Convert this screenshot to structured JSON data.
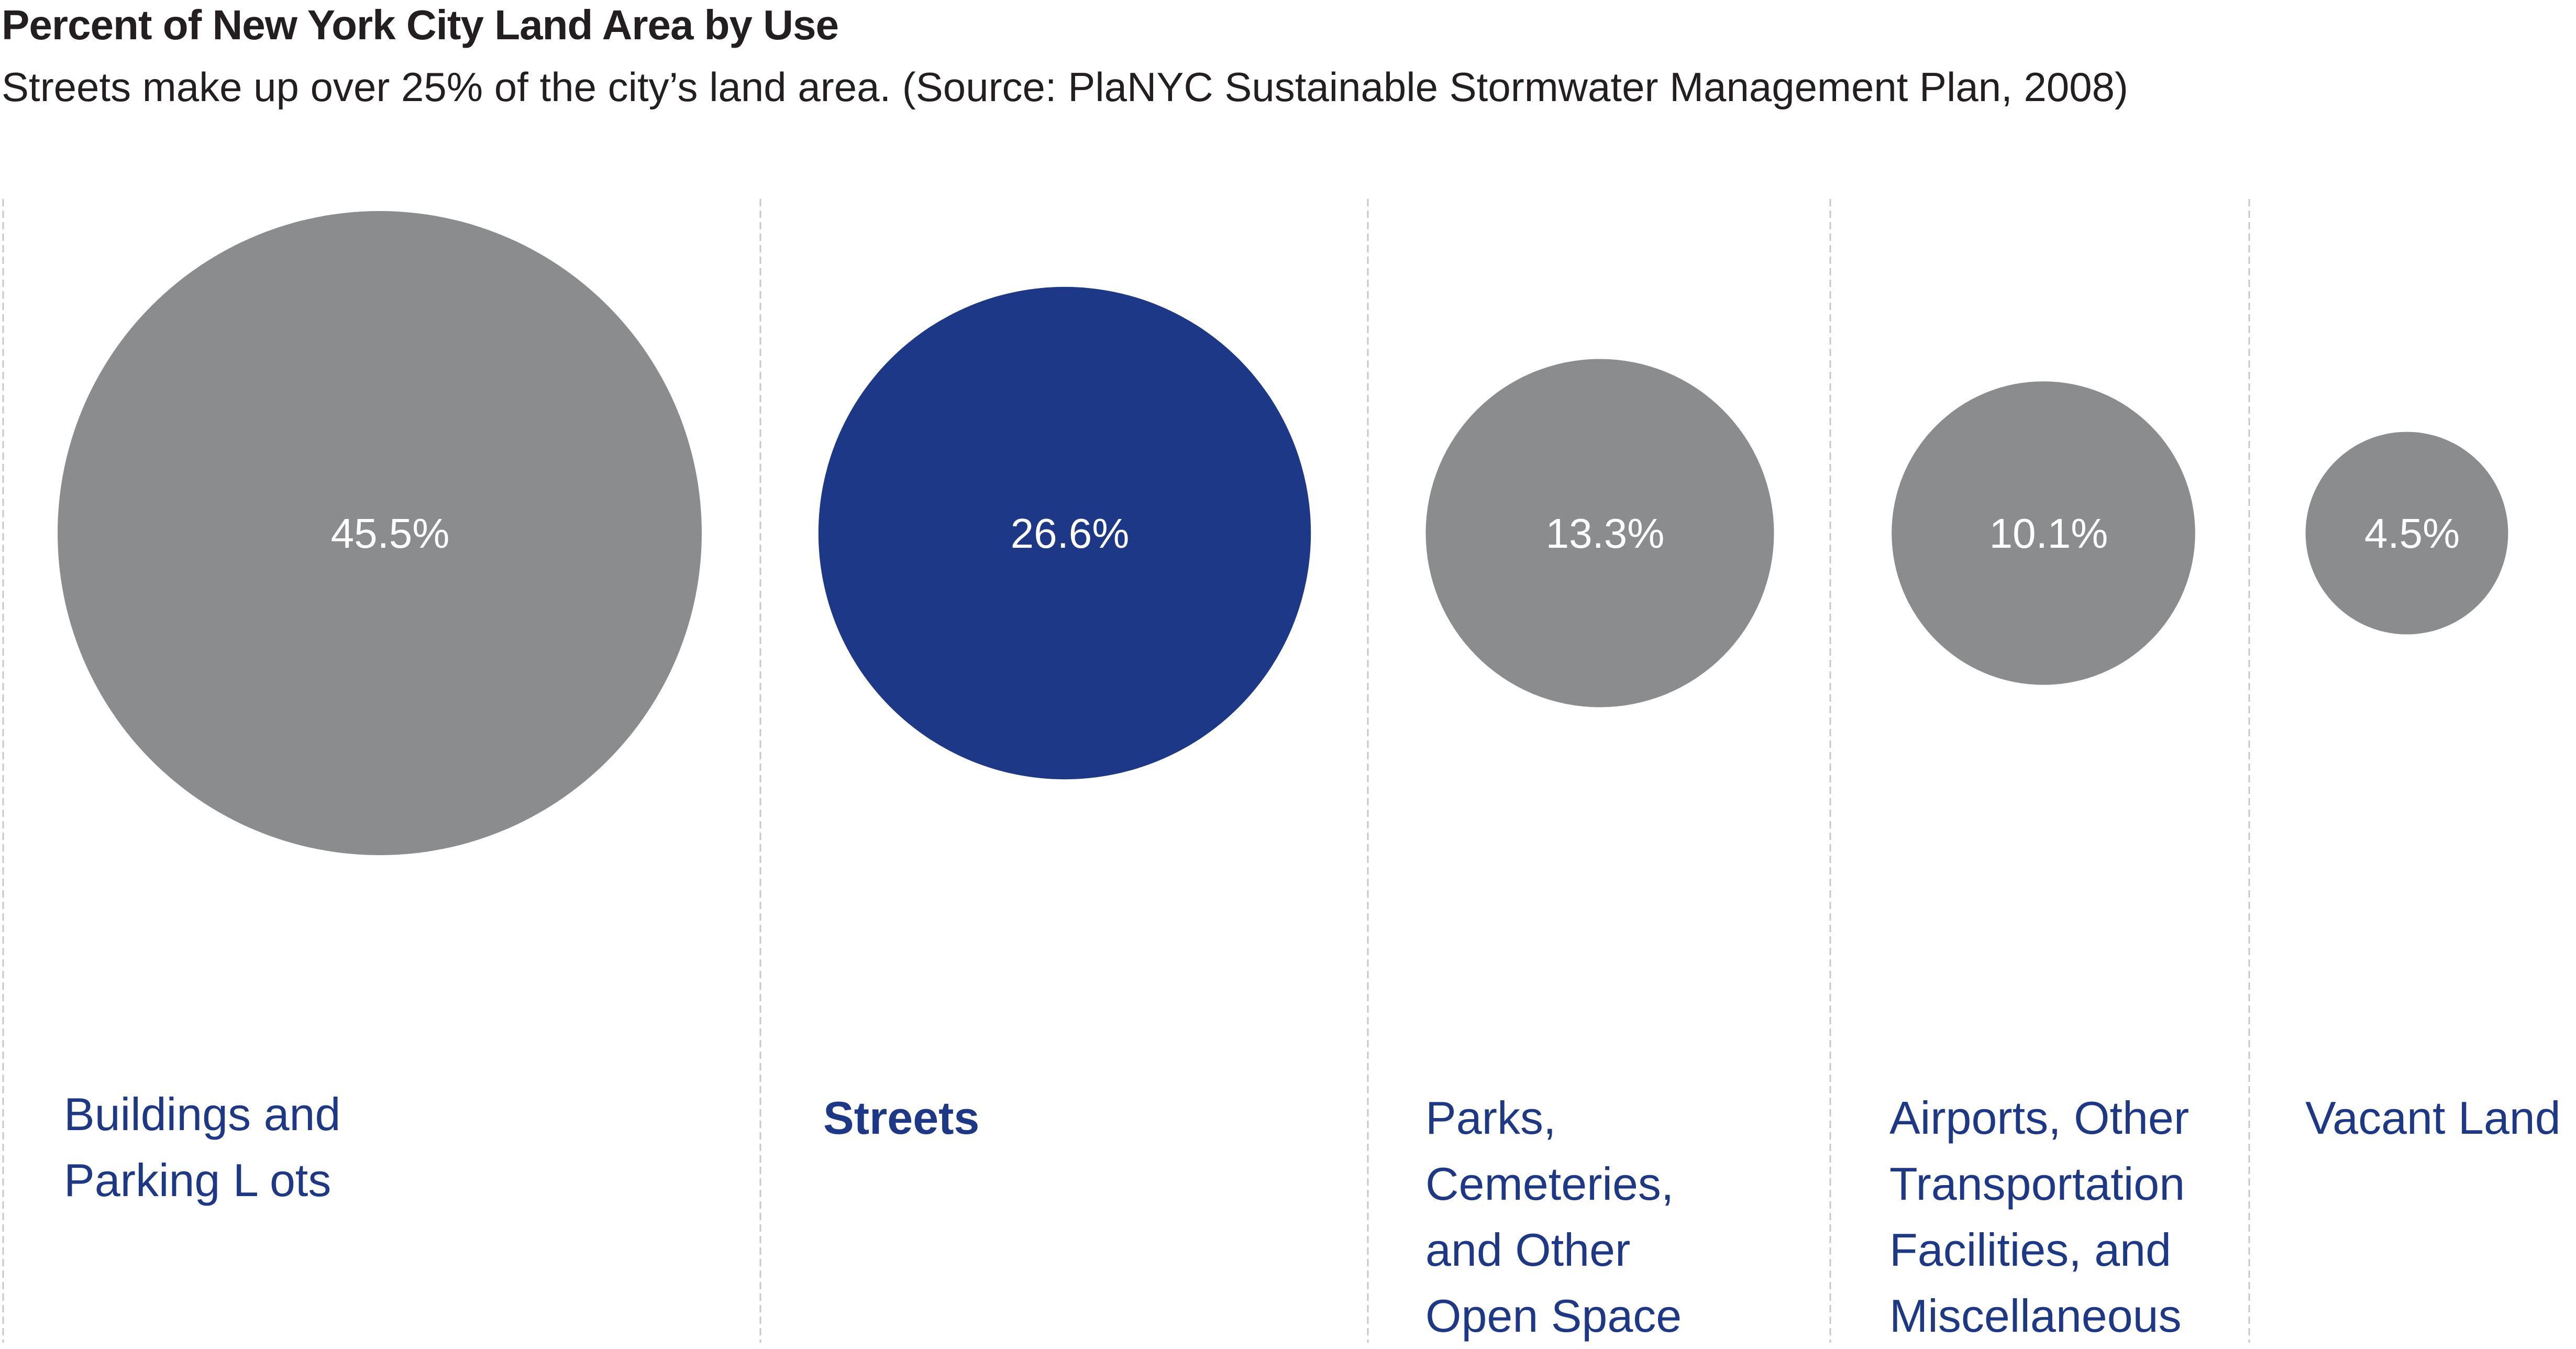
{
  "chart_data": {
    "type": "bubble",
    "title": "Percent of New York City Land Area by Use",
    "subtitle": "Streets make up over 25% of the city’s land area. (Source: PlaNYC Sustainable Stormwater Management Plan, 2008)",
    "unit": "%",
    "categories": [
      {
        "label_lines": [
          "Buildings and",
          "Parking L ots"
        ],
        "value": 45.5,
        "display": "45.5%",
        "color": "#8b8c8e",
        "highlight": false
      },
      {
        "label_lines": [
          "Streets"
        ],
        "value": 26.6,
        "display": "26.6%",
        "color": "#1e3888",
        "highlight": true
      },
      {
        "label_lines": [
          "Parks,",
          "Cemeteries,",
          "and Other",
          "Open Space"
        ],
        "value": 13.3,
        "display": "13.3%",
        "color": "#8b8c8e",
        "highlight": false
      },
      {
        "label_lines": [
          "Airports, Other",
          "Transportation",
          "Facilities, and",
          "Miscellaneous"
        ],
        "value": 10.1,
        "display": "10.1%",
        "color": "#8b8c8e",
        "highlight": false
      },
      {
        "label_lines": [
          "Vacant Land"
        ],
        "value": 4.5,
        "display": "4.5%",
        "color": "#8b8c8e",
        "highlight": false
      }
    ],
    "colors": {
      "highlight": "#1e3888",
      "default": "#8b8c8e",
      "label_text": "#1e3888",
      "bubble_text": "#ffffff",
      "divider": "#c8c8c8"
    }
  }
}
